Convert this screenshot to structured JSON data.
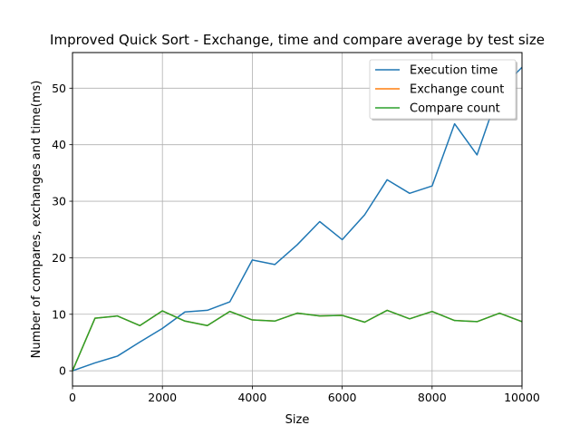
{
  "chart_data": {
    "type": "line",
    "title": "Improved Quick Sort - Exchange, time and compare average by test size",
    "xlabel": "Size",
    "ylabel": "Number of compares, exchanges and time(ms)",
    "xlim": [
      0,
      10000
    ],
    "ylim": [
      -2.7,
      56.3
    ],
    "xticks": [
      0,
      2000,
      4000,
      6000,
      8000,
      10000
    ],
    "yticks": [
      0,
      10,
      20,
      30,
      40,
      50
    ],
    "grid": true,
    "legend_position": "top-right",
    "x": [
      0,
      500,
      1000,
      1500,
      2000,
      2500,
      3000,
      3500,
      4000,
      4500,
      5000,
      5500,
      6000,
      6500,
      7000,
      7500,
      8000,
      8500,
      9000,
      9500,
      10000
    ],
    "series": [
      {
        "name": "Execution time",
        "color": "#1f77b4",
        "values": [
          0,
          1.4,
          2.6,
          5.1,
          7.5,
          10.4,
          10.7,
          12.2,
          19.6,
          18.8,
          22.3,
          26.4,
          23.2,
          27.6,
          33.8,
          31.4,
          32.7,
          43.7,
          38.2,
          49.7,
          53.7
        ]
      },
      {
        "name": "Exchange count",
        "color": "#ff7f0e",
        "values": [
          0,
          9.3,
          9.7,
          8.0,
          10.6,
          8.8,
          8.0,
          10.5,
          9.0,
          8.8,
          10.2,
          9.7,
          9.8,
          8.6,
          10.7,
          9.2,
          10.5,
          8.9,
          8.7,
          10.2,
          8.7
        ]
      },
      {
        "name": "Compare count",
        "color": "#2ca02c",
        "values": [
          0,
          9.3,
          9.7,
          8.0,
          10.6,
          8.8,
          8.0,
          10.5,
          9.0,
          8.8,
          10.2,
          9.7,
          9.8,
          8.6,
          10.7,
          9.2,
          10.5,
          8.9,
          8.7,
          10.2,
          8.7
        ]
      }
    ]
  }
}
